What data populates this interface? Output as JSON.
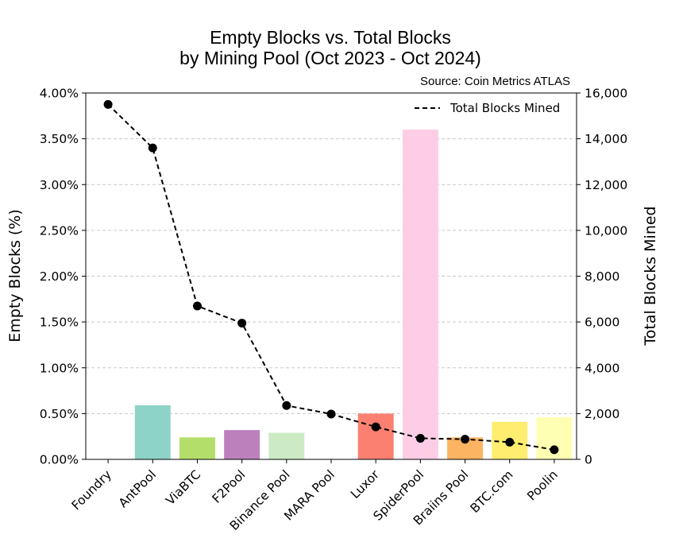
{
  "chart_data": {
    "type": "bar",
    "title_line1": "Empty Blocks vs. Total Blocks",
    "title_line2": "by Mining Pool (Oct 2023 - Oct 2024)",
    "source": "Source: Coin Metrics ATLAS",
    "ylabel_left": "Empty Blocks (%)",
    "ylabel_right": "Total Blocks Mined",
    "ylim_left": [
      0,
      4.0
    ],
    "ylim_right": [
      0,
      16000
    ],
    "left_ticks": [
      "0.00%",
      "0.50%",
      "1.00%",
      "1.50%",
      "2.00%",
      "2.50%",
      "3.00%",
      "3.50%",
      "4.00%"
    ],
    "right_ticks": [
      "0",
      "2,000",
      "4,000",
      "6,000",
      "8,000",
      "10,000",
      "12,000",
      "14,000",
      "16,000"
    ],
    "grid": true,
    "legend_position": "top-right",
    "categories": [
      "Foundry",
      "AntPool",
      "ViaBTC",
      "F2Pool",
      "Binance Pool",
      "MARA Pool",
      "Luxor",
      "SpiderPool",
      "Braiins Pool",
      "BTC.com",
      "Poolin"
    ],
    "series": [
      {
        "type": "bar",
        "axis": "left",
        "values": [
          0.0,
          0.59,
          0.24,
          0.32,
          0.29,
          0.0,
          0.5,
          3.6,
          0.24,
          0.41,
          0.46
        ],
        "colors": [
          "#8dd3c7",
          "#8dd3c7",
          "#b3de69",
          "#bc80bd",
          "#ccebc5",
          "#8dd3c7",
          "#fb8072",
          "#fccde5",
          "#fdb462",
          "#ffed6f",
          "#ffffb3"
        ]
      },
      {
        "type": "line",
        "axis": "right",
        "name": "Total Blocks Mined",
        "values": [
          15500,
          13600,
          6700,
          5950,
          2350,
          1980,
          1420,
          920,
          880,
          750,
          420
        ],
        "color": "#000000",
        "style": "dashed"
      }
    ]
  }
}
